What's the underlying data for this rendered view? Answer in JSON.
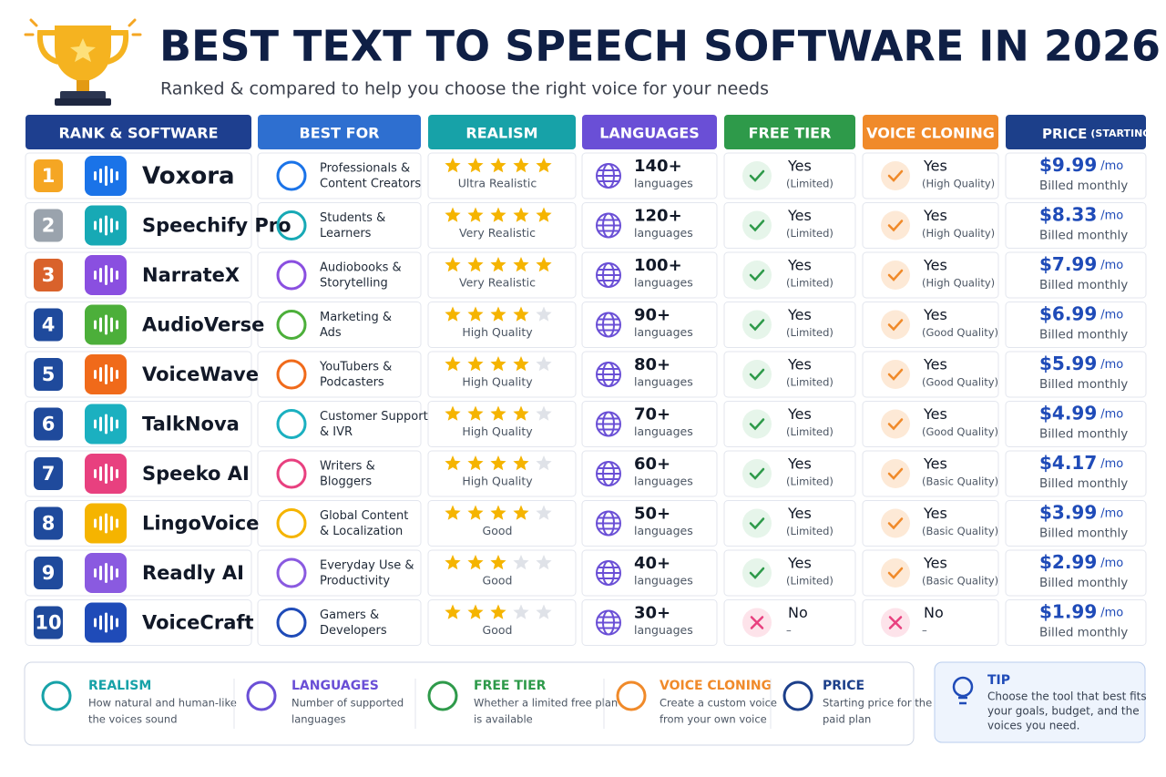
{
  "header": {
    "title": "BEST TEXT TO SPEECH SOFTWARE IN 2026",
    "subtitle": "Ranked & compared to help you choose the right voice for your needs"
  },
  "table": {
    "columns": [
      {
        "label": "RANK & SOFTWARE",
        "color": "#1e3f8f"
      },
      {
        "label": "BEST FOR",
        "color": "#2e6fd0"
      },
      {
        "label": "REALISM",
        "color": "#17a2a8"
      },
      {
        "label": "LANGUAGES",
        "color": "#6a4fd6"
      },
      {
        "label": "FREE TIER",
        "color": "#2e9a4a"
      },
      {
        "label": "VOICE CLONING",
        "color": "#f08a2a"
      },
      {
        "label": "PRICE",
        "note": "(STARTING AT)",
        "color": "#1c3f8a"
      }
    ],
    "rows": [
      {
        "rank": "1",
        "rank_color": "#f5a623",
        "software": "Voxora",
        "color": "#1a73e8",
        "best_for": [
          "Professionals &",
          "Content Creators"
        ],
        "stars": 5,
        "realism": "Ultra Realistic",
        "languages": "140+",
        "languages_unit": "languages",
        "free_tier_ok": true,
        "free_tier": "Yes",
        "free_tier_note": "(Limited)",
        "cloning_ok": true,
        "voice_cloning": "Yes",
        "voice_cloning_note": "(High Quality)",
        "price": "$9.99",
        "price_unit": "/mo",
        "billing": "Billed monthly"
      },
      {
        "rank": "2",
        "rank_color": "#9aa3ad",
        "software": "Speechify Pro",
        "color": "#17a9b5",
        "best_for": [
          "Students &",
          "Learners"
        ],
        "stars": 5,
        "realism": "Very Realistic",
        "languages": "120+",
        "languages_unit": "languages",
        "free_tier_ok": true,
        "free_tier": "Yes",
        "free_tier_note": "(Limited)",
        "cloning_ok": true,
        "voice_cloning": "Yes",
        "voice_cloning_note": "(High Quality)",
        "price": "$8.33",
        "price_unit": "/mo",
        "billing": "Billed monthly"
      },
      {
        "rank": "3",
        "rank_color": "#d9622b",
        "software": "NarrateX",
        "color": "#8a4fe0",
        "best_for": [
          "Audiobooks &",
          "Storytelling"
        ],
        "stars": 5,
        "realism": "Very Realistic",
        "languages": "100+",
        "languages_unit": "languages",
        "free_tier_ok": true,
        "free_tier": "Yes",
        "free_tier_note": "(Limited)",
        "cloning_ok": true,
        "voice_cloning": "Yes",
        "voice_cloning_note": "(High Quality)",
        "price": "$7.99",
        "price_unit": "/mo",
        "billing": "Billed monthly"
      },
      {
        "rank": "4",
        "rank_color": "#1f4a9c",
        "software": "AudioVerse",
        "color": "#4caf3a",
        "best_for": [
          "Marketing &",
          "Ads"
        ],
        "stars": 4,
        "realism": "High Quality",
        "languages": "90+",
        "languages_unit": "languages",
        "free_tier_ok": true,
        "free_tier": "Yes",
        "free_tier_note": "(Limited)",
        "cloning_ok": true,
        "voice_cloning": "Yes",
        "voice_cloning_note": "(Good Quality)",
        "price": "$6.99",
        "price_unit": "/mo",
        "billing": "Billed monthly"
      },
      {
        "rank": "5",
        "rank_color": "#1f4a9c",
        "software": "VoiceWave",
        "color": "#f06a1a",
        "best_for": [
          "YouTubers &",
          "Podcasters"
        ],
        "stars": 4,
        "realism": "High Quality",
        "languages": "80+",
        "languages_unit": "languages",
        "free_tier_ok": true,
        "free_tier": "Yes",
        "free_tier_note": "(Limited)",
        "cloning_ok": true,
        "voice_cloning": "Yes",
        "voice_cloning_note": "(Good Quality)",
        "price": "$5.99",
        "price_unit": "/mo",
        "billing": "Billed monthly"
      },
      {
        "rank": "6",
        "rank_color": "#1f4a9c",
        "software": "TalkNova",
        "color": "#1bb0c0",
        "best_for": [
          "Customer Support",
          "& IVR"
        ],
        "stars": 4,
        "realism": "High Quality",
        "languages": "70+",
        "languages_unit": "languages",
        "free_tier_ok": true,
        "free_tier": "Yes",
        "free_tier_note": "(Limited)",
        "cloning_ok": true,
        "voice_cloning": "Yes",
        "voice_cloning_note": "(Good Quality)",
        "price": "$4.99",
        "price_unit": "/mo",
        "billing": "Billed monthly"
      },
      {
        "rank": "7",
        "rank_color": "#1f4a9c",
        "software": "Speeko AI",
        "color": "#e8407f",
        "best_for": [
          "Writers &",
          "Bloggers"
        ],
        "stars": 4,
        "realism": "High Quality",
        "languages": "60+",
        "languages_unit": "languages",
        "free_tier_ok": true,
        "free_tier": "Yes",
        "free_tier_note": "(Limited)",
        "cloning_ok": true,
        "voice_cloning": "Yes",
        "voice_cloning_note": "(Basic Quality)",
        "price": "$4.17",
        "price_unit": "/mo",
        "billing": "Billed monthly"
      },
      {
        "rank": "8",
        "rank_color": "#1f4a9c",
        "software": "LingoVoice",
        "color": "#f5b400",
        "best_for": [
          "Global Content",
          "& Localization"
        ],
        "stars": 4,
        "realism": "Good",
        "languages": "50+",
        "languages_unit": "languages",
        "free_tier_ok": true,
        "free_tier": "Yes",
        "free_tier_note": "(Limited)",
        "cloning_ok": true,
        "voice_cloning": "Yes",
        "voice_cloning_note": "(Basic Quality)",
        "price": "$3.99",
        "price_unit": "/mo",
        "billing": "Billed monthly"
      },
      {
        "rank": "9",
        "rank_color": "#1f4a9c",
        "software": "Readly AI",
        "color": "#8a5ae0",
        "best_for": [
          "Everyday Use &",
          "Productivity"
        ],
        "stars": 3,
        "realism": "Good",
        "languages": "40+",
        "languages_unit": "languages",
        "free_tier_ok": true,
        "free_tier": "Yes",
        "free_tier_note": "(Limited)",
        "cloning_ok": true,
        "voice_cloning": "Yes",
        "voice_cloning_note": "(Basic Quality)",
        "price": "$2.99",
        "price_unit": "/mo",
        "billing": "Billed monthly"
      },
      {
        "rank": "10",
        "rank_color": "#1f4a9c",
        "software": "VoiceCraft",
        "color": "#1f4bb8",
        "best_for": [
          "Gamers &",
          "Developers"
        ],
        "stars": 3,
        "realism": "Good",
        "languages": "30+",
        "languages_unit": "languages",
        "free_tier_ok": false,
        "free_tier": "No",
        "free_tier_note": "–",
        "cloning_ok": false,
        "voice_cloning": "No",
        "voice_cloning_note": "–",
        "price": "$1.99",
        "price_unit": "/mo",
        "billing": "Billed monthly"
      }
    ]
  },
  "legend": {
    "items": [
      {
        "title": "REALISM",
        "color": "#17a2a8",
        "text": [
          "How natural and human-like",
          "the voices sound"
        ]
      },
      {
        "title": "LANGUAGES",
        "color": "#6a4fd6",
        "text": [
          "Number of supported",
          "languages"
        ]
      },
      {
        "title": "FREE TIER",
        "color": "#2e9a4a",
        "text": [
          "Whether a limited free plan",
          "is available"
        ]
      },
      {
        "title": "VOICE CLONING",
        "color": "#f08a2a",
        "text": [
          "Create a custom voice",
          "from your own voice"
        ]
      },
      {
        "title": "PRICE",
        "color": "#1c3f8a",
        "text": [
          "Starting price for the",
          "paid plan"
        ]
      }
    ]
  },
  "tip": {
    "title": "TIP",
    "text": [
      "Choose the tool that best fits",
      "your goals, budget, and the",
      "voices you need."
    ]
  }
}
